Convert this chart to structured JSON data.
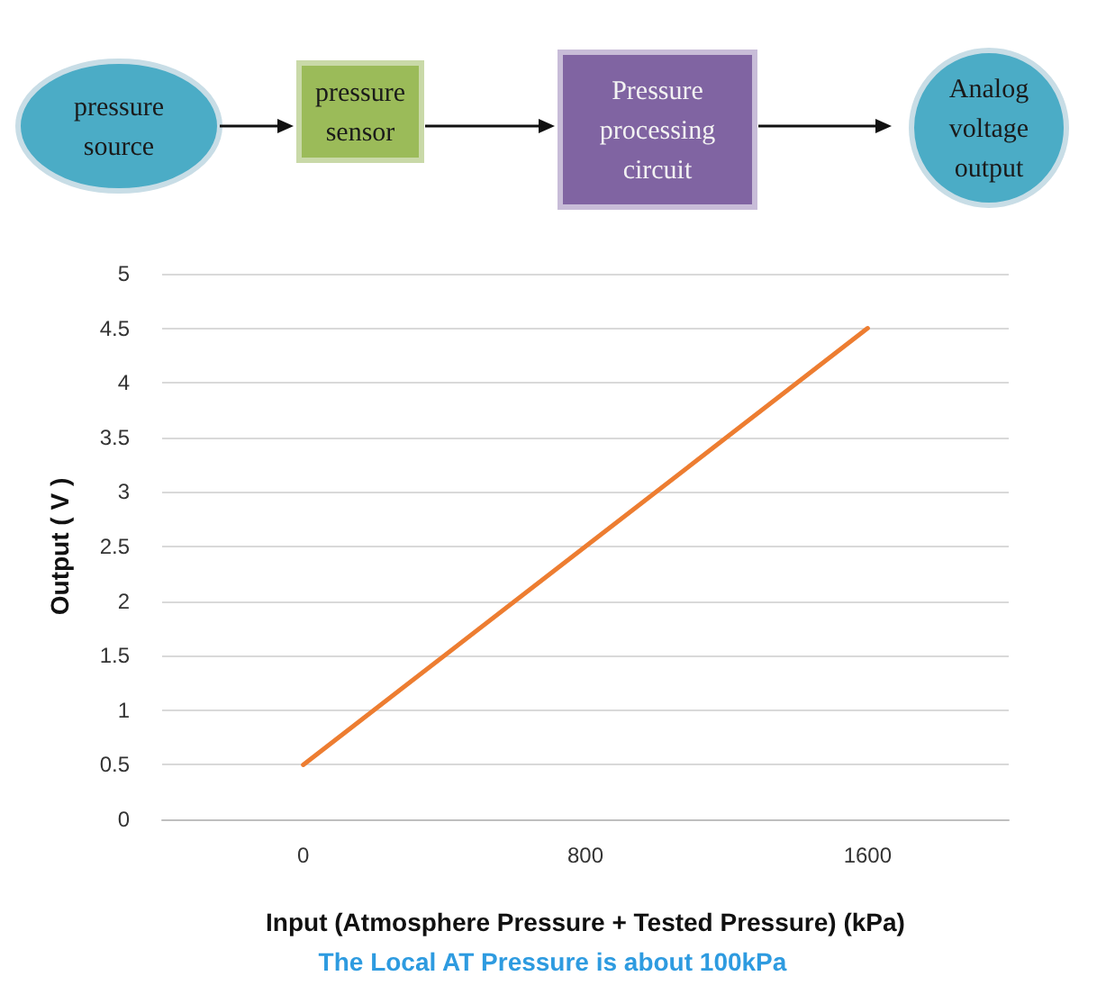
{
  "chart_data": {
    "type": "line",
    "xlabel": "Input (Atmosphere Pressure + Tested Pressure) (kPa)",
    "ylabel": "Output ( V )",
    "annotations": [
      "pressure source",
      "pressure sensor",
      "Pressure processing circuit",
      "Analog voltage output",
      "The Local AT Pressure is about 100kPa"
    ],
    "x": [
      0,
      800,
      1600
    ],
    "series": [
      {
        "color": "#ed7d31",
        "values": [
          0.5,
          2.5,
          4.5
        ]
      }
    ],
    "xlim": [
      -400,
      2000
    ],
    "xticks": [
      0,
      800,
      1600
    ],
    "ylim": [
      0,
      5
    ],
    "yticks": [
      0,
      0.5,
      1,
      1.5,
      2,
      2.5,
      3,
      3.5,
      4,
      4.5,
      5
    ],
    "grid": "y",
    "marker": "none",
    "line_style": "solid"
  }
}
